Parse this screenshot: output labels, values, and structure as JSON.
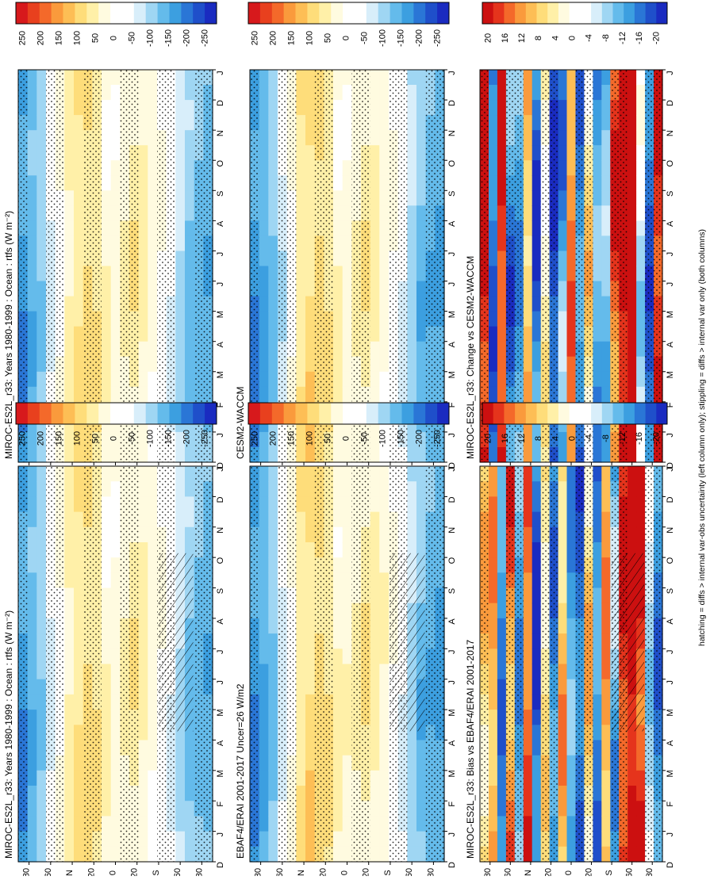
{
  "footer_note": "hatching = diffs > internal var-obs uncertainty (left column only); stippling = diffs > internal var only (both columns)",
  "colors": {
    "full_scale": [
      "#d7191c",
      "#e8401e",
      "#f4692a",
      "#fa9a3c",
      "#fdbe55",
      "#fedd7a",
      "#fff0a8",
      "#fffbe0",
      "#ffffff",
      "#ffffff",
      "#d8eefa",
      "#9fd6f3",
      "#64bbeb",
      "#3c9fe0",
      "#2a76d6",
      "#1f4fca",
      "#1a2bc0"
    ],
    "diff_scale": [
      "#cc1010",
      "#e5341c",
      "#f4692a",
      "#fa9a3c",
      "#fdbe55",
      "#fedd7a",
      "#fff0a8",
      "#fffbe0",
      "#ffffff",
      "#ffffff",
      "#d8eefa",
      "#9fd6f3",
      "#64bbeb",
      "#3c9fe0",
      "#2a76d6",
      "#1f4fca",
      "#1a2bc0"
    ]
  },
  "chart_data": [
    {
      "type": "heatmap",
      "title": "MIROC-ES2L_r33: Years 1980-1999 : Ocean : rtfs (W m⁻²)",
      "time_ticks": [
        "D",
        "J",
        "F",
        "M",
        "A",
        "M",
        "J",
        "J",
        "A",
        "S",
        "O",
        "N",
        "D",
        "J"
      ],
      "lat_ticks": [
        "80",
        "60",
        "N",
        "20",
        "0",
        "20",
        "S",
        "60",
        "80"
      ],
      "colorbar_ticks": [
        "250",
        "200",
        "150",
        "100",
        "50",
        "0",
        "-50",
        "-100",
        "-150",
        "-200",
        "-250"
      ],
      "scale": "full",
      "hatching": true,
      "lat_profile": [
        -160,
        -130,
        -100,
        -40,
        20,
        60,
        80,
        90,
        70,
        40,
        30,
        40,
        60,
        50,
        30,
        0,
        -40,
        -80,
        -110,
        -120,
        -130
      ]
    },
    {
      "type": "heatmap",
      "title": "MIROC-ES2L_r33: Years 1980-1999 : Ocean : rtfs (W m⁻²)",
      "time_ticks": [
        "D",
        "J",
        "F",
        "M",
        "A",
        "M",
        "J",
        "J",
        "A",
        "S",
        "O",
        "N",
        "D",
        "J"
      ],
      "lat_ticks": [
        "80",
        "60",
        "N",
        "20",
        "0",
        "20",
        "S",
        "60",
        "80"
      ],
      "colorbar_ticks": [
        "250",
        "200",
        "150",
        "100",
        "50",
        "0",
        "-50",
        "-100",
        "-150",
        "-200",
        "-250"
      ],
      "scale": "full",
      "hatching": false,
      "lat_profile": [
        -160,
        -130,
        -100,
        -40,
        20,
        60,
        80,
        90,
        70,
        40,
        30,
        40,
        60,
        50,
        30,
        0,
        -40,
        -80,
        -110,
        -120,
        -130
      ]
    },
    {
      "type": "heatmap",
      "title": "EBAF4/ERAI 2001-2017 Uncer=26 W/m2",
      "time_ticks": [
        "D",
        "J",
        "F",
        "M",
        "A",
        "M",
        "J",
        "J",
        "A",
        "S",
        "O",
        "N",
        "D",
        "J"
      ],
      "lat_ticks": [
        "80",
        "60",
        "N",
        "20",
        "0",
        "20",
        "S",
        "60",
        "80"
      ],
      "colorbar_ticks": [
        "250",
        "200",
        "150",
        "100",
        "50",
        "0",
        "-50",
        "-100",
        "-150",
        "-200",
        "-250"
      ],
      "scale": "full",
      "hatching": true,
      "lat_profile": [
        -170,
        -140,
        -110,
        -50,
        20,
        70,
        90,
        95,
        75,
        45,
        35,
        45,
        65,
        55,
        35,
        5,
        -40,
        -90,
        -120,
        -130,
        -140
      ]
    },
    {
      "type": "heatmap",
      "title": "CESM2-WACCM",
      "time_ticks": [
        "D",
        "J",
        "F",
        "M",
        "A",
        "M",
        "J",
        "J",
        "A",
        "S",
        "O",
        "N",
        "D",
        "J"
      ],
      "lat_ticks": [
        "80",
        "60",
        "N",
        "20",
        "0",
        "20",
        "S",
        "60",
        "80"
      ],
      "colorbar_ticks": [
        "250",
        "200",
        "150",
        "100",
        "50",
        "0",
        "-50",
        "-100",
        "-150",
        "-200",
        "-250"
      ],
      "scale": "full",
      "hatching": false,
      "lat_profile": [
        -170,
        -140,
        -110,
        -60,
        20,
        70,
        90,
        95,
        70,
        40,
        30,
        40,
        60,
        50,
        30,
        0,
        -45,
        -90,
        -120,
        -130,
        -135
      ]
    },
    {
      "type": "heatmap",
      "title": "MIROC-ES2L_r33: Bias vs EBAF4/ERAI 2001-2017",
      "time_ticks": [
        "D",
        "J",
        "F",
        "M",
        "A",
        "M",
        "J",
        "J",
        "A",
        "S",
        "O",
        "N",
        "D",
        "J"
      ],
      "lat_ticks": [
        "80",
        "60",
        "N",
        "20",
        "0",
        "20",
        "S",
        "60",
        "80"
      ],
      "colorbar_ticks": [
        "20",
        "16",
        "12",
        "8",
        "4",
        "0",
        "-4",
        "-8",
        "-12",
        "-16",
        "-20"
      ],
      "scale": "diff",
      "hatching": true,
      "lat_profile": [
        8,
        12,
        -14,
        14,
        -12,
        16,
        -18,
        6,
        -14,
        10,
        -12,
        -16,
        8,
        -14,
        12,
        -10,
        18,
        22,
        20,
        -6,
        -14
      ]
    },
    {
      "type": "heatmap",
      "title": "MIROC-ES2L_r33: Change vs CESM2-WACCM",
      "time_ticks": [
        "D",
        "J",
        "F",
        "M",
        "A",
        "M",
        "J",
        "J",
        "A",
        "S",
        "O",
        "N",
        "D",
        "J"
      ],
      "lat_ticks": [
        "80",
        "60",
        "N",
        "20",
        "0",
        "20",
        "S",
        "60",
        "80"
      ],
      "colorbar_ticks": [
        "20",
        "16",
        "12",
        "8",
        "4",
        "0",
        "-4",
        "-8",
        "-12",
        "-16",
        "-20"
      ],
      "scale": "diff",
      "hatching": false,
      "lat_profile": [
        22,
        -16,
        18,
        -14,
        -12,
        10,
        -16,
        4,
        -18,
        -12,
        14,
        -14,
        6,
        -12,
        -10,
        16,
        22,
        24,
        -4,
        -16,
        20
      ]
    }
  ]
}
